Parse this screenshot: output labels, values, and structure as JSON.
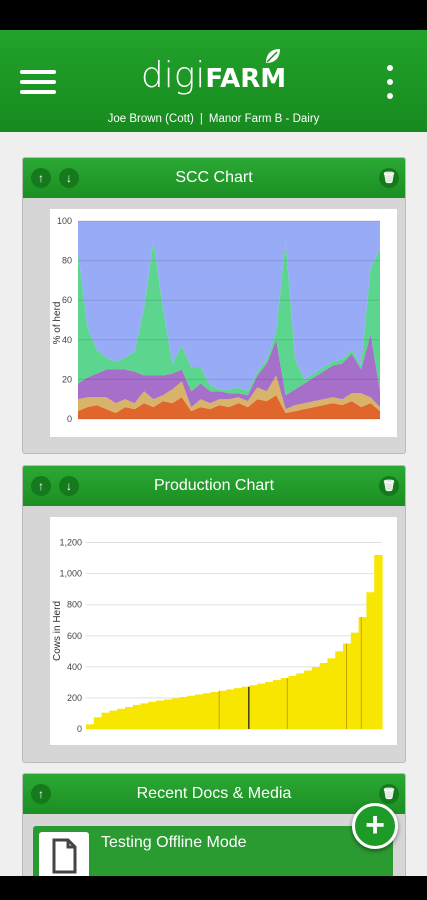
{
  "header": {
    "logo_digi": "digi",
    "logo_farm": "FARM",
    "user": "Joe Brown (Cott)",
    "separator": "|",
    "farm": "Manor Farm B - Dairy"
  },
  "cards": {
    "scc": {
      "title": "SCC Chart"
    },
    "production": {
      "title": "Production Chart"
    },
    "docs": {
      "title": "Recent Docs & Media",
      "first_item": "Testing Offline Mode"
    }
  },
  "icons": {
    "up": "arrow-up-icon",
    "down": "arrow-down-icon",
    "trash": "trash-icon",
    "add": "plus-icon"
  },
  "colors": {
    "header_green": "#1c9524",
    "green_band": "#5cd68f",
    "blue_band": "#98abf7",
    "purple_band": "#a66fca",
    "tan_band": "#d7b46a",
    "orange_band": "#e0662b",
    "production_yellow": "#f7e600"
  },
  "chart_data": [
    {
      "type": "area",
      "title": "SCC Chart",
      "ylabel": "% of herd",
      "xlabel": "",
      "ylim": [
        0,
        100
      ],
      "yticks": [
        "0",
        "20",
        "40",
        "60",
        "80",
        "100"
      ],
      "stacked": true,
      "series": [
        {
          "name": "",
          "color": "#e0662b",
          "values": [
            4,
            6,
            7,
            5,
            3,
            6,
            5,
            8,
            6,
            9,
            8,
            11,
            4,
            6,
            5,
            7,
            6,
            8,
            6,
            10,
            9,
            12,
            3,
            4,
            5,
            6,
            7,
            8,
            7,
            9,
            6,
            8,
            4
          ]
        },
        {
          "name": "",
          "color": "#d7b46a",
          "values": [
            6,
            5,
            4,
            6,
            5,
            4,
            3,
            6,
            4,
            3,
            7,
            8,
            2,
            4,
            3,
            3,
            4,
            3,
            3,
            6,
            5,
            10,
            2,
            3,
            3,
            3,
            3,
            3,
            3,
            4,
            7,
            3,
            2
          ]
        },
        {
          "name": "",
          "color": "#a66fca",
          "values": [
            8,
            10,
            12,
            14,
            17,
            15,
            16,
            8,
            12,
            10,
            8,
            6,
            8,
            8,
            6,
            4,
            3,
            2,
            3,
            6,
            14,
            18,
            7,
            8,
            10,
            12,
            14,
            16,
            18,
            20,
            12,
            32,
            8
          ]
        },
        {
          "name": "",
          "color": "#5cd68f",
          "values": [
            66,
            25,
            12,
            6,
            4,
            6,
            10,
            34,
            68,
            34,
            5,
            12,
            12,
            8,
            3,
            1,
            2,
            3,
            2,
            2,
            2,
            4,
            78,
            15,
            2,
            2,
            2,
            2,
            2,
            2,
            2,
            33,
            72
          ]
        },
        {
          "name": "",
          "color": "#98abf7",
          "values": [
            16,
            54,
            65,
            69,
            71,
            69,
            66,
            44,
            10,
            44,
            72,
            63,
            74,
            74,
            83,
            85,
            85,
            84,
            86,
            76,
            70,
            56,
            10,
            70,
            80,
            77,
            74,
            71,
            70,
            65,
            73,
            24,
            14
          ]
        }
      ]
    },
    {
      "type": "bar",
      "title": "Production Chart",
      "ylabel": "Cows in Herd",
      "xlabel": "",
      "ylim": [
        0,
        1300
      ],
      "yticks": [
        "0",
        "200",
        "400",
        "600",
        "800",
        "1,000",
        "1,200"
      ],
      "series": [
        {
          "name": "",
          "color": "#f7e600",
          "values": [
            30,
            75,
            105,
            118,
            130,
            142,
            155,
            165,
            175,
            183,
            190,
            198,
            206,
            214,
            222,
            230,
            238,
            246,
            255,
            263,
            272,
            282,
            292,
            303,
            315,
            328,
            342,
            358,
            376,
            398,
            425,
            455,
            500,
            550,
            620,
            720,
            880,
            1120
          ]
        }
      ]
    }
  ]
}
